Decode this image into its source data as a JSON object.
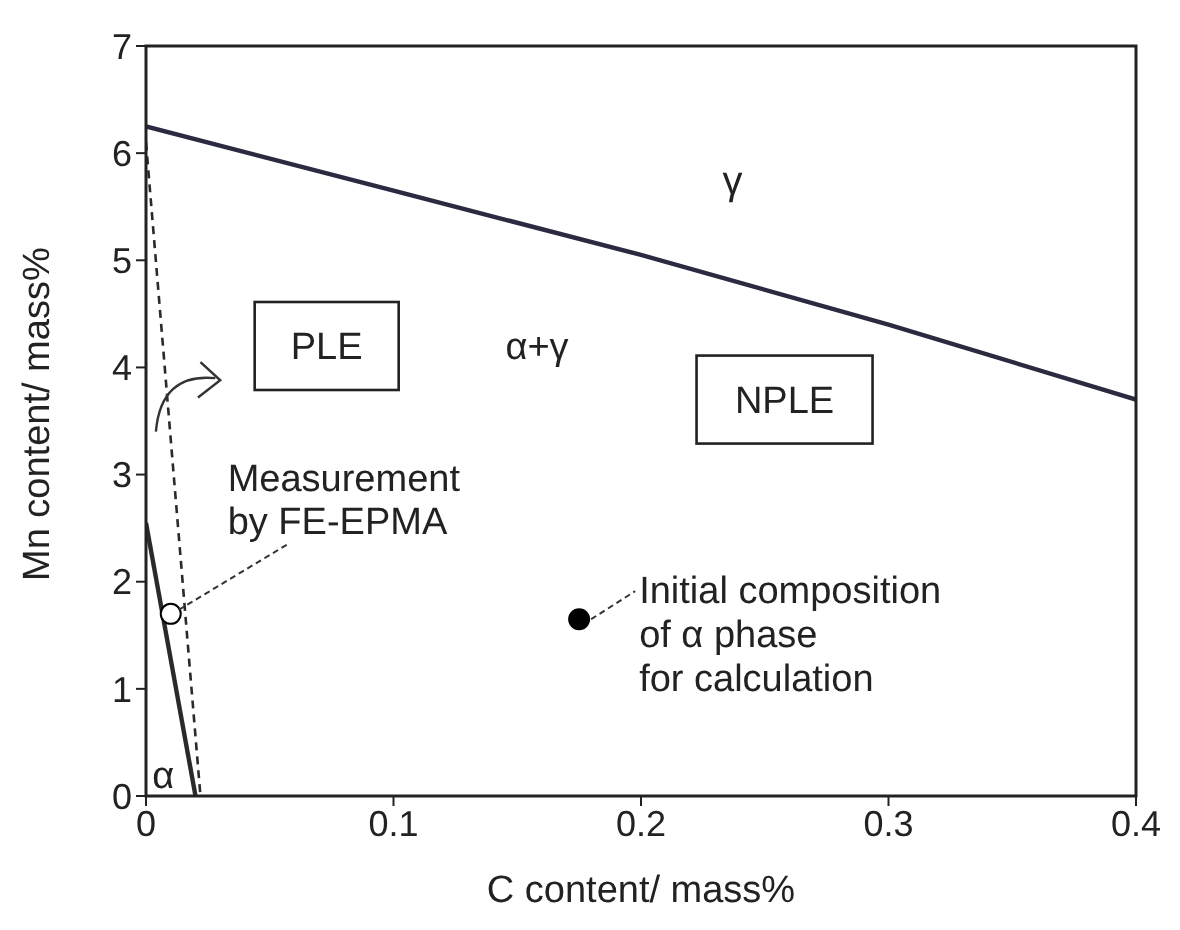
{
  "chart_data": {
    "type": "line",
    "xlabel": "C content/ mass%",
    "ylabel": "Mn content/ mass%",
    "xlim": [
      0,
      0.4
    ],
    "ylim": [
      0,
      7
    ],
    "xticks": [
      0,
      0.1,
      0.2,
      0.3,
      0.4
    ],
    "yticks": [
      0,
      1,
      2,
      3,
      4,
      5,
      6,
      7
    ],
    "grid": false,
    "series": [
      {
        "color": "#2a2a40",
        "line_style": "solid",
        "x": [
          0,
          0.1,
          0.2,
          0.3,
          0.4
        ],
        "values": [
          6.25,
          5.65,
          5.05,
          4.4,
          3.7
        ]
      },
      {
        "color": "#2a2a2a",
        "line_style": "solid",
        "x": [
          0,
          0.02
        ],
        "values": [
          2.55,
          0
        ]
      },
      {
        "color": "#2a2a2a",
        "line_style": "dashed",
        "x": [
          0,
          0.022
        ],
        "values": [
          6.1,
          0
        ]
      },
      {
        "type": "scatter",
        "color": "#ffffff",
        "marker": "circle",
        "x": [
          0.01
        ],
        "values": [
          1.7
        ]
      },
      {
        "type": "scatter",
        "color": "#000000",
        "marker": "circle",
        "x": [
          0.175
        ],
        "values": [
          1.65
        ]
      }
    ],
    "annotations": [
      "γ",
      "α+γ",
      "PLE",
      "NPLE",
      "α",
      {
        "text": "Measurement\nby FE-EPMA",
        "x": 0.01,
        "y": 1.7
      },
      {
        "text": "Initial composition\nof α phase\nfor calculation",
        "x": 0.175,
        "y": 1.65
      }
    ]
  }
}
